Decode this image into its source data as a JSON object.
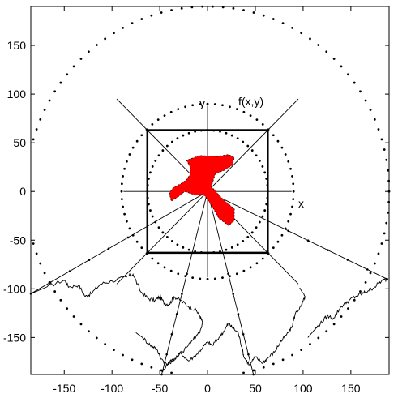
{
  "chart_data": {
    "type": "scatter",
    "xlim": [
      -185,
      190
    ],
    "ylim": [
      -188,
      190
    ],
    "x_ticks": [
      -150,
      -100,
      -50,
      0,
      50,
      100,
      150
    ],
    "y_ticks": [
      150,
      100,
      50,
      0,
      -50,
      -100,
      -150
    ],
    "x_tick_labels": [
      "-150",
      "-100",
      "-50",
      "0",
      "50",
      "100",
      "150"
    ],
    "y_tick_labels": [
      "150",
      "100",
      "50",
      "0",
      "-50",
      "-100",
      "-150"
    ],
    "grid": false,
    "annotations": {
      "axis_x": "x",
      "axis_y": "y",
      "function": "f(x,y)"
    },
    "square_half_width": 63,
    "circles": [
      {
        "name": "inner-dotted-circle",
        "radius": 63
      },
      {
        "name": "middle-dotted-circle",
        "radius": 90
      },
      {
        "name": "outer-dotted-circle",
        "radius": 190
      }
    ],
    "diagonals_extent": 95,
    "lower_rays_extent": 190,
    "blob": [
      [
        -18,
        25
      ],
      [
        -22,
        32
      ],
      [
        -8,
        37
      ],
      [
        10,
        36
      ],
      [
        22,
        38
      ],
      [
        28,
        35
      ],
      [
        26,
        27
      ],
      [
        18,
        22
      ],
      [
        8,
        18
      ],
      [
        4,
        5
      ],
      [
        16,
        -8
      ],
      [
        28,
        -18
      ],
      [
        28,
        -30
      ],
      [
        22,
        -35
      ],
      [
        12,
        -28
      ],
      [
        4,
        -14
      ],
      [
        -4,
        -3
      ],
      [
        -12,
        -4
      ],
      [
        -24,
        0
      ],
      [
        -30,
        -5
      ],
      [
        -38,
        -10
      ],
      [
        -40,
        -2
      ],
      [
        -36,
        4
      ],
      [
        -28,
        8
      ],
      [
        -22,
        12
      ],
      [
        -18,
        18
      ]
    ],
    "boundary_traces": [
      {
        "name": "bottom-boundary-left",
        "points": [
          [
            -185,
            -105
          ],
          [
            -168,
            -98
          ],
          [
            -150,
            -91
          ],
          [
            -145,
            -98
          ],
          [
            -135,
            -96
          ],
          [
            -128,
            -108
          ],
          [
            -122,
            -105
          ],
          [
            -112,
            -95
          ],
          [
            -100,
            -92
          ],
          [
            -85,
            -88
          ],
          [
            -78,
            -85
          ],
          [
            -70,
            -103
          ],
          [
            -62,
            -110
          ],
          [
            -55,
            -112
          ],
          [
            -50,
            -108
          ],
          [
            -45,
            -115
          ],
          [
            -40,
            -116
          ],
          [
            -35,
            -108
          ],
          [
            -28,
            -112
          ],
          [
            -20,
            -118
          ],
          [
            -12,
            -122
          ],
          [
            -8,
            -128
          ],
          [
            -5,
            -135
          ],
          [
            -8,
            -145
          ],
          [
            -15,
            -152
          ],
          [
            -22,
            -160
          ],
          [
            -30,
            -168
          ],
          [
            -40,
            -176
          ],
          [
            -48,
            -185
          ]
        ]
      },
      {
        "name": "bottom-boundary-middle",
        "points": [
          [
            -75,
            -145
          ],
          [
            -68,
            -150
          ],
          [
            -60,
            -158
          ],
          [
            -55,
            -160
          ],
          [
            -48,
            -172
          ],
          [
            -42,
            -178
          ],
          [
            -35,
            -172
          ],
          [
            -28,
            -166
          ],
          [
            -20,
            -174
          ],
          [
            -12,
            -168
          ],
          [
            -5,
            -160
          ],
          [
            0,
            -155
          ],
          [
            5,
            -158
          ],
          [
            12,
            -150
          ],
          [
            18,
            -142
          ],
          [
            22,
            -135
          ],
          [
            26,
            -140
          ],
          [
            32,
            -145
          ],
          [
            36,
            -160
          ],
          [
            38,
            -170
          ],
          [
            44,
            -178
          ],
          [
            50,
            -170
          ],
          [
            58,
            -176
          ],
          [
            62,
            -172
          ],
          [
            70,
            -165
          ],
          [
            76,
            -155
          ],
          [
            82,
            -148
          ],
          [
            88,
            -140
          ],
          [
            92,
            -125
          ],
          [
            98,
            -118
          ],
          [
            102,
            -108
          ],
          [
            96,
            -100
          ]
        ]
      },
      {
        "name": "bottom-boundary-right",
        "points": [
          [
            105,
            -150
          ],
          [
            112,
            -142
          ],
          [
            118,
            -136
          ],
          [
            125,
            -128
          ],
          [
            132,
            -130
          ],
          [
            140,
            -118
          ],
          [
            148,
            -112
          ],
          [
            155,
            -108
          ],
          [
            162,
            -105
          ],
          [
            168,
            -102
          ],
          [
            175,
            -98
          ],
          [
            182,
            -92
          ],
          [
            188,
            -90
          ]
        ]
      }
    ]
  }
}
